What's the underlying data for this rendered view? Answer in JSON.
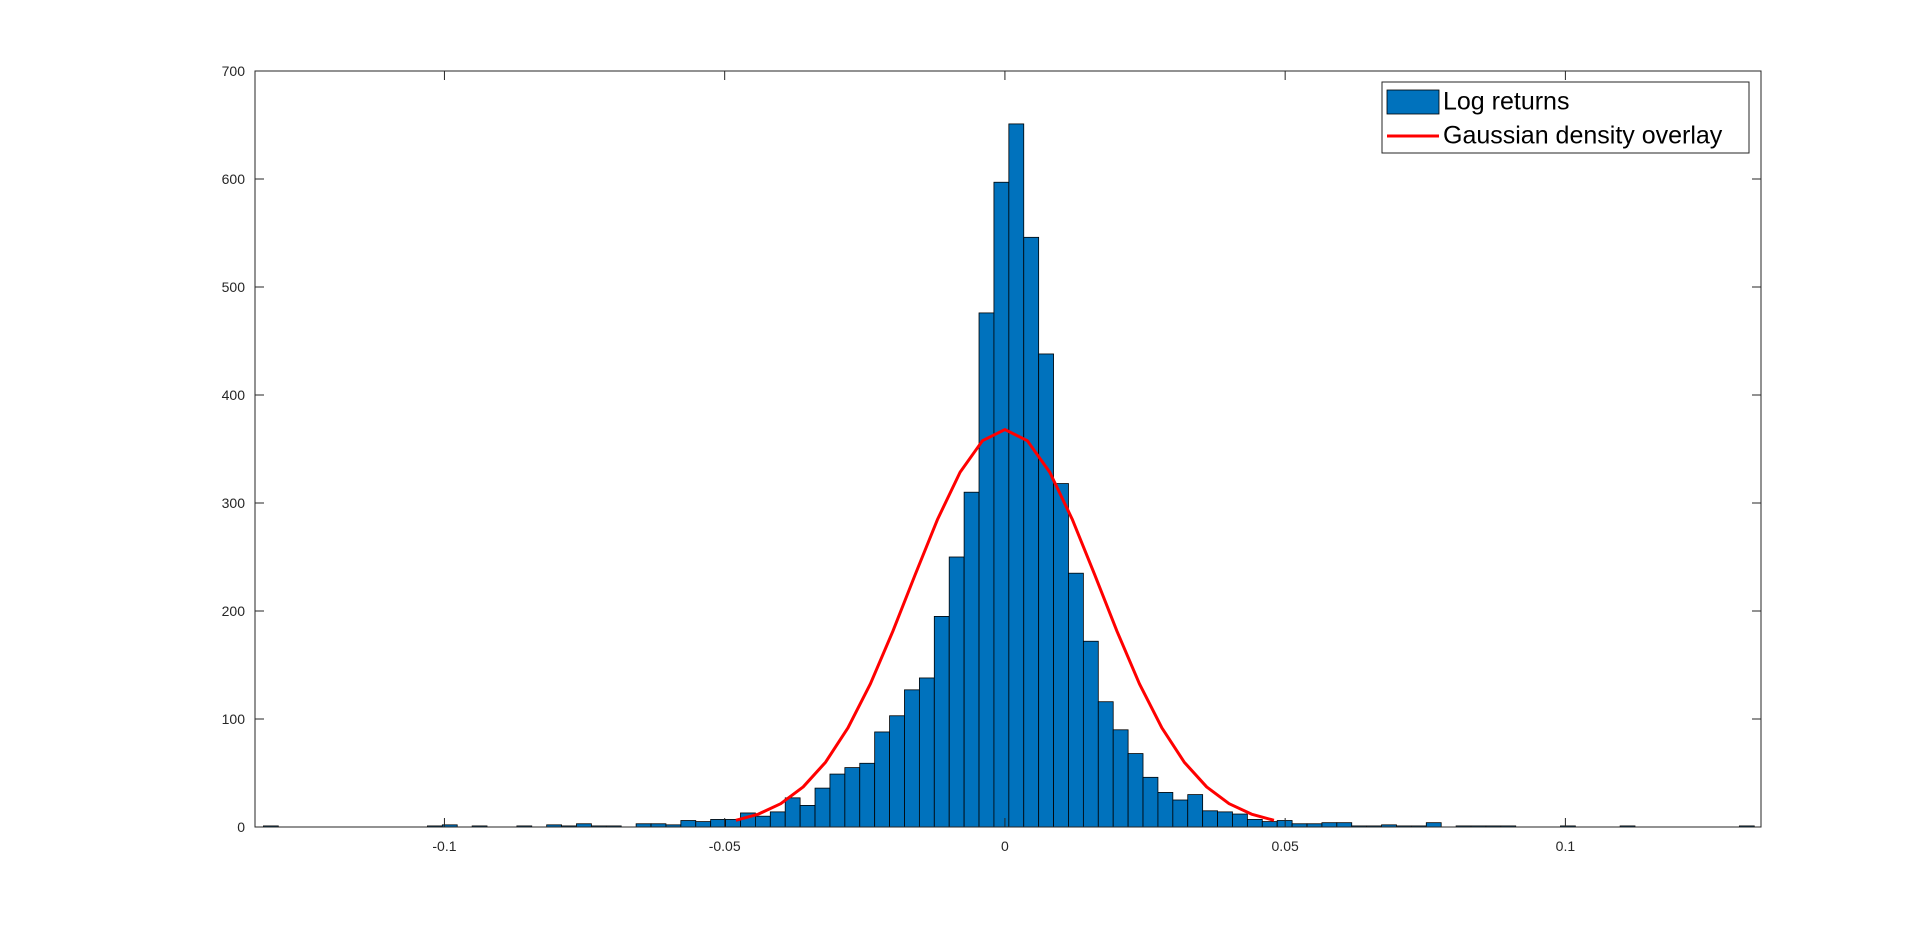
{
  "chart_data": {
    "type": "histogram",
    "bins": [
      -0.1323,
      -0.12964,
      -0.12698,
      -0.12432,
      -0.12166,
      -0.119,
      -0.11634,
      -0.11368,
      -0.11102,
      -0.10836,
      -0.1057,
      -0.10304,
      -0.10038,
      -0.09772,
      -0.09506,
      -0.0924,
      -0.08974,
      -0.08708,
      -0.08442,
      -0.08176,
      -0.0791,
      -0.07644,
      -0.07378,
      -0.07112,
      -0.06846,
      -0.0658,
      -0.06314,
      -0.06048,
      -0.05782,
      -0.05516,
      -0.0525,
      -0.04984,
      -0.04718,
      -0.04452,
      -0.04186,
      -0.0392,
      -0.03654,
      -0.03388,
      -0.03122,
      -0.02856,
      -0.0259,
      -0.02324,
      -0.02058,
      -0.01792,
      -0.01526,
      -0.0126,
      -0.00994,
      -0.00728,
      -0.00462,
      -0.00196,
      0.0007,
      0.00336,
      0.00602,
      0.00868,
      0.01134,
      0.014,
      0.01666,
      0.01932,
      0.02198,
      0.02464,
      0.0273,
      0.02996,
      0.03262,
      0.03528,
      0.03794,
      0.0406,
      0.04326,
      0.04592,
      0.04858,
      0.05124,
      0.0539,
      0.05656,
      0.05922,
      0.06188,
      0.06454,
      0.0672,
      0.06986,
      0.07252,
      0.07518,
      0.07784,
      0.0805,
      0.08316,
      0.08582,
      0.08848,
      0.09114,
      0.0938,
      0.09646,
      0.09912,
      0.10178,
      0.10444,
      0.1071,
      0.10976,
      0.11242,
      0.11508,
      0.11774,
      0.1204,
      0.12306,
      0.12572,
      0.12838,
      0.13104,
      0.1337
    ],
    "series": [
      {
        "name": "Log returns",
        "type": "histogram",
        "color": "#0072bd",
        "values": [
          1,
          0,
          0,
          0,
          0,
          0,
          0,
          0,
          0,
          0,
          0,
          1,
          2,
          0,
          1,
          0,
          0,
          1,
          0,
          2,
          1,
          3,
          1,
          1,
          0,
          3,
          3,
          2,
          6,
          5,
          7,
          7,
          13,
          10,
          14,
          27,
          20,
          36,
          49,
          55,
          59,
          88,
          103,
          127,
          138,
          195,
          250,
          310,
          476,
          597,
          651,
          546,
          438,
          318,
          235,
          172,
          116,
          90,
          68,
          46,
          32,
          25,
          30,
          15,
          14,
          12,
          7,
          5,
          6,
          3,
          3,
          4,
          4,
          1,
          1,
          2,
          1,
          1,
          4,
          0,
          1,
          1,
          1,
          1,
          0,
          0,
          0,
          1,
          0,
          0,
          0,
          1,
          0,
          0,
          0,
          0,
          0,
          0,
          0,
          1
        ]
      },
      {
        "name": "Gaussian density overlay",
        "type": "line",
        "color": "#ff0000",
        "x": [
          -0.048,
          -0.044,
          -0.04,
          -0.036,
          -0.032,
          -0.028,
          -0.024,
          -0.02,
          -0.016,
          -0.012,
          -0.008,
          -0.004,
          0,
          0.004,
          0.008,
          0.012,
          0.016,
          0.02,
          0.024,
          0.028,
          0.032,
          0.036,
          0.04,
          0.044,
          0.048
        ],
        "values": [
          6.2,
          11.9,
          21.6,
          37.1,
          60.0,
          91.8,
          132.6,
          181.2,
          233.8,
          285.1,
          328.5,
          357.7,
          368,
          357.7,
          328.5,
          285.1,
          233.8,
          181.2,
          132.6,
          91.8,
          60.0,
          37.1,
          21.6,
          11.9,
          6.2
        ]
      }
    ],
    "xlim": [
      -0.1338,
      0.1349
    ],
    "ylim": [
      0,
      700
    ],
    "xticks": [
      -0.1,
      -0.05,
      0,
      0.05,
      0.1
    ],
    "yticks": [
      0,
      100,
      200,
      300,
      400,
      500,
      600,
      700
    ],
    "legend": "upper right"
  }
}
